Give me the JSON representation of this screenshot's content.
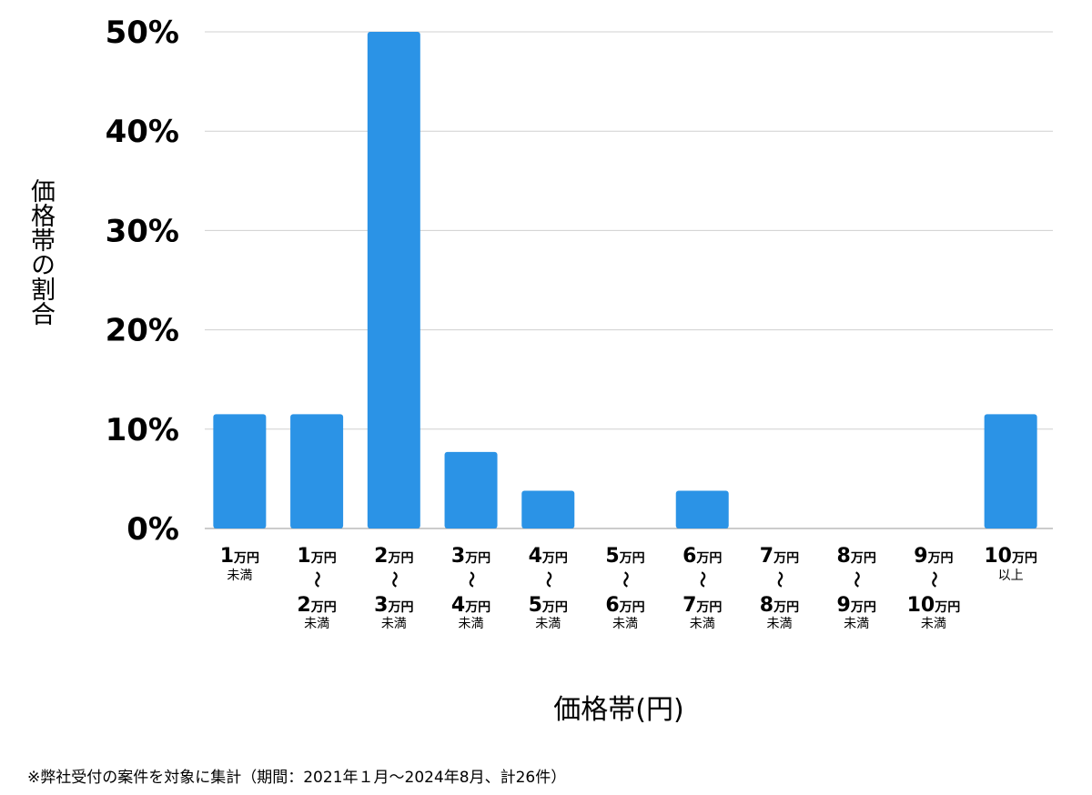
{
  "chart_data": {
    "type": "bar",
    "title": "",
    "ylabel": "価格帯の割合",
    "xlabel": "価格帯(円)",
    "ylim": [
      0,
      50
    ],
    "y_ticks": [
      "0%",
      "10%",
      "20%",
      "30%",
      "40%",
      "50%"
    ],
    "y_tick_values": [
      0,
      10,
      20,
      30,
      40,
      50
    ],
    "grid": true,
    "bar_color": "#2b93e6",
    "categories": [
      {
        "lo": "1",
        "lo_unit": "万円",
        "hi": "",
        "hi_unit": "",
        "suffix": "未満"
      },
      {
        "lo": "1",
        "lo_unit": "万円",
        "hi": "2",
        "hi_unit": "万円",
        "suffix": "未満"
      },
      {
        "lo": "2",
        "lo_unit": "万円",
        "hi": "3",
        "hi_unit": "万円",
        "suffix": "未満"
      },
      {
        "lo": "3",
        "lo_unit": "万円",
        "hi": "4",
        "hi_unit": "万円",
        "suffix": "未満"
      },
      {
        "lo": "4",
        "lo_unit": "万円",
        "hi": "5",
        "hi_unit": "万円",
        "suffix": "未満"
      },
      {
        "lo": "5",
        "lo_unit": "万円",
        "hi": "6",
        "hi_unit": "万円",
        "suffix": "未満"
      },
      {
        "lo": "6",
        "lo_unit": "万円",
        "hi": "7",
        "hi_unit": "万円",
        "suffix": "未満"
      },
      {
        "lo": "7",
        "lo_unit": "万円",
        "hi": "8",
        "hi_unit": "万円",
        "suffix": "未満"
      },
      {
        "lo": "8",
        "lo_unit": "万円",
        "hi": "9",
        "hi_unit": "万円",
        "suffix": "未満"
      },
      {
        "lo": "9",
        "lo_unit": "万円",
        "hi": "10",
        "hi_unit": "万円",
        "suffix": "未満"
      },
      {
        "lo": "10",
        "lo_unit": "万円",
        "hi": "",
        "hi_unit": "",
        "suffix": "以上"
      }
    ],
    "range_mark": "〜",
    "values": [
      11.5,
      11.5,
      50,
      7.7,
      3.8,
      0,
      3.8,
      0,
      0,
      0,
      11.5
    ]
  },
  "footnote": "※弊社受付の案件を対象に集計（期間：2021年１月〜2024年8月、計26件）"
}
